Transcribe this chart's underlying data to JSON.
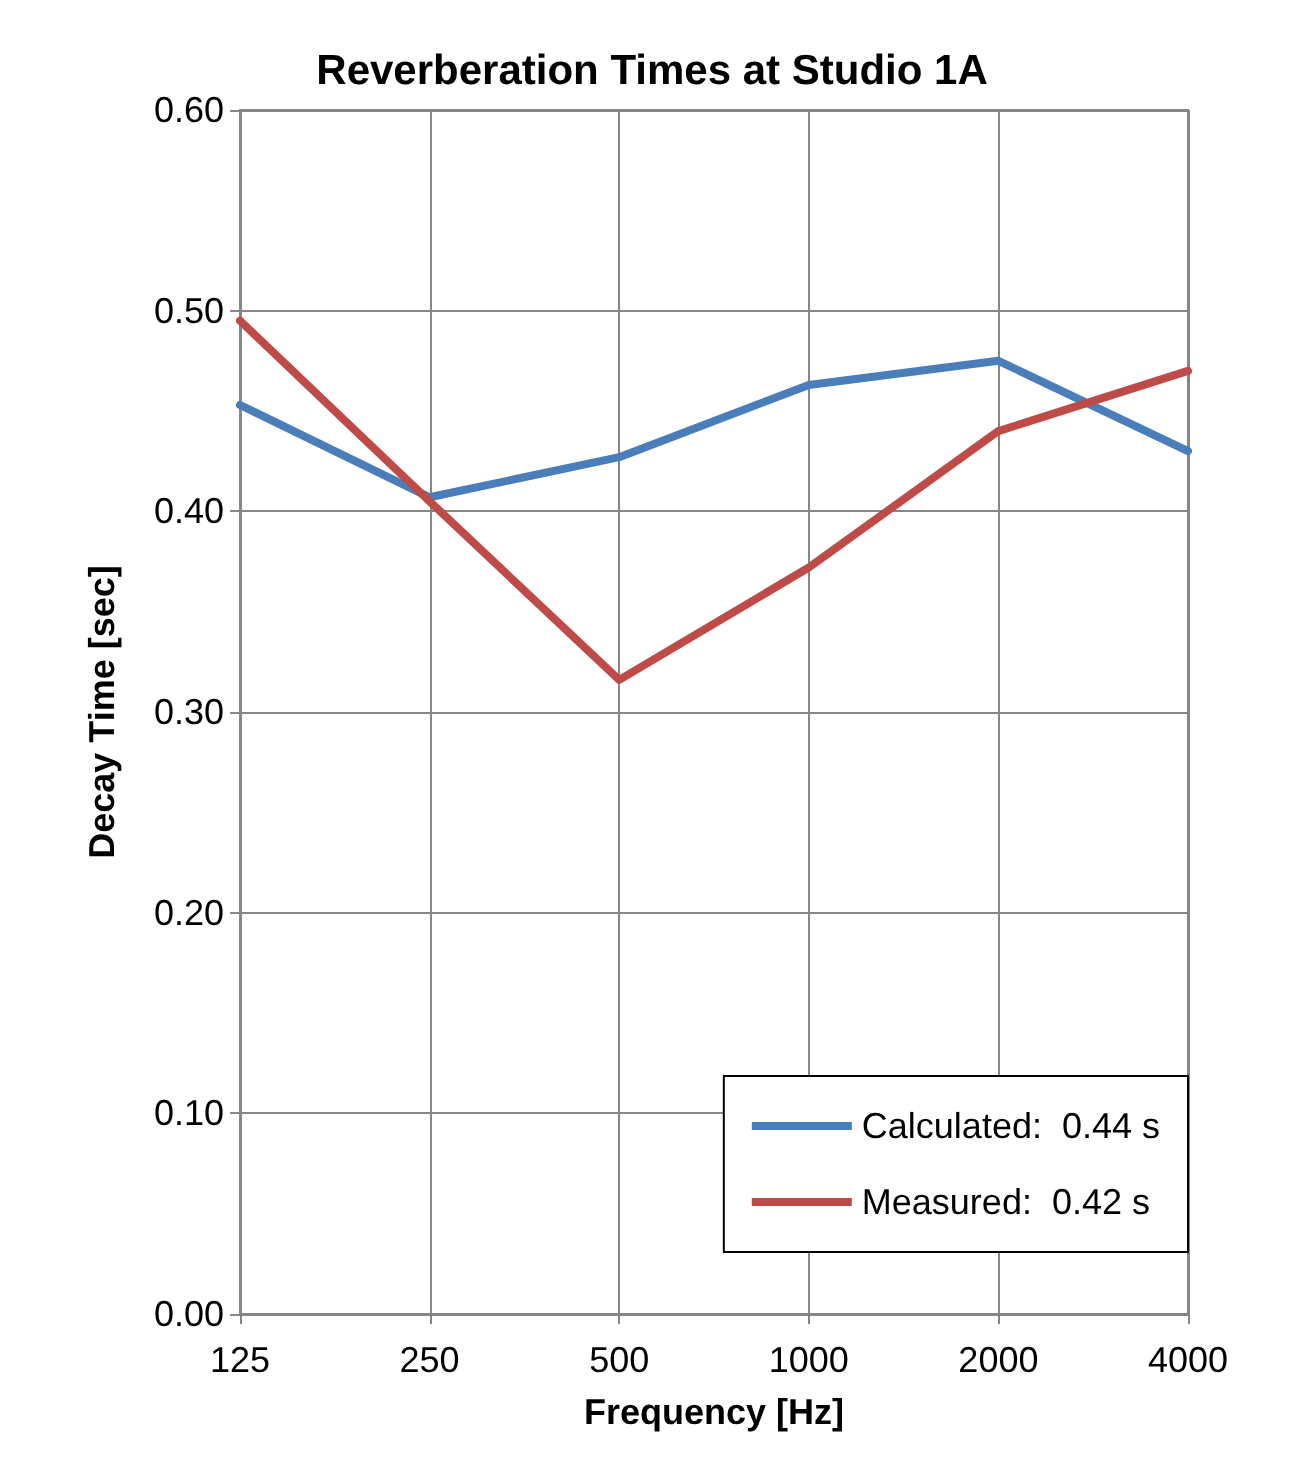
{
  "chart_data": {
    "type": "line",
    "title": "Reverberation Times at Studio 1A",
    "xlabel": "Frequency [Hz]",
    "ylabel": "Decay Time [sec]",
    "categories": [
      "125",
      "250",
      "500",
      "1000",
      "2000",
      "4000"
    ],
    "series": [
      {
        "name": "Calculated:  0.44 s",
        "color": "#4a7ebb",
        "values": [
          0.453,
          0.407,
          0.427,
          0.463,
          0.475,
          0.43
        ]
      },
      {
        "name": "Measured:  0.42 s",
        "color": "#be4b48",
        "values": [
          0.495,
          0.405,
          0.316,
          0.372,
          0.44,
          0.47
        ]
      }
    ],
    "ylim": [
      0,
      0.6
    ],
    "yticks": [
      {
        "value": 0,
        "label": "0.00"
      },
      {
        "value": 0.1,
        "label": "0.10"
      },
      {
        "value": 0.2,
        "label": "0.20"
      },
      {
        "value": 0.3,
        "label": "0.30"
      },
      {
        "value": 0.4,
        "label": "0.40"
      },
      {
        "value": 0.5,
        "label": "0.50"
      },
      {
        "value": 0.6,
        "label": "0.60"
      }
    ],
    "grid": true,
    "legend": "bottom right",
    "marker": "none",
    "line_style": "solid"
  }
}
